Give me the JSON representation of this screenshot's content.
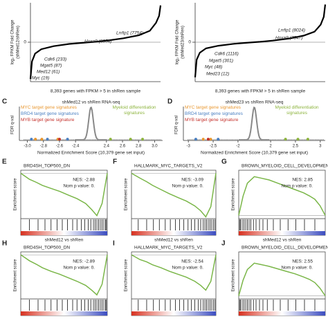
{
  "chart_data": [
    {
      "type": "line",
      "ylabel": [
        "log₂ FPKM Fold Change",
        "(shMed12/shRen)"
      ],
      "xlabel": "8,393 genes with FPKM > 5 in shRen sample",
      "x": [
        1,
        100,
        300,
        700,
        1500,
        2500,
        3500,
        4200,
        5000,
        6000,
        7000,
        7700,
        8100,
        8300,
        8393
      ],
      "values": [
        -4.2,
        -2.2,
        -1.3,
        -0.8,
        -0.45,
        -0.2,
        -0.05,
        0.05,
        0.2,
        0.45,
        0.8,
        1.3,
        2.2,
        3,
        4.2
      ],
      "color": "#000000",
      "xlim": [
        1,
        8393
      ],
      "ylim": [
        -4.5,
        4.5
      ],
      "yticks": [
        0
      ],
      "annotations": [
        "Lrrfip1 (7754)",
        "Hoxa9 (6554)",
        "Cdk6 (233)",
        "Mgat5 (87)",
        "Med12 (61)",
        "Myc (19)"
      ]
    },
    {
      "type": "line",
      "ylabel": [
        "log₂ FPKM Fold Change",
        "(shMed23/shRen)"
      ],
      "xlabel": "8,393 genes with FPKM > 5 in shRen sample",
      "x": [
        1,
        100,
        300,
        700,
        1500,
        2500,
        3500,
        4200,
        5000,
        6000,
        7000,
        7700,
        8100,
        8300,
        8393
      ],
      "values": [
        -4,
        -2,
        -1.2,
        -0.7,
        -0.4,
        -0.18,
        -0.04,
        0.05,
        0.18,
        0.4,
        0.75,
        1.2,
        2,
        2.9,
        4.3
      ],
      "color": "#000000",
      "xlim": [
        1,
        8393
      ],
      "ylim": [
        -4.5,
        4.5
      ],
      "yticks": [
        0
      ],
      "annotations": [
        "Lrrfip1 (8024)",
        "Hoxa9 (7547)",
        "Cdk6 (1116)",
        "Mgat5 (301)",
        "Myc (48)",
        "Med23 (12)"
      ]
    },
    {
      "type": "scatter",
      "panel": "C",
      "title": "shMed12 vs shRen RNA-seq",
      "ylabel": "FDR q-val",
      "xlabel": "Normalized Enrichment Score (10,379 gene set input)",
      "xlim": [
        -3.1,
        3.1
      ],
      "xbreak": [
        -2.35,
        2.35
      ],
      "ylim": [
        0,
        1
      ],
      "xticks": [
        {
          "value": -3,
          "label": "-3.0"
        },
        -2.8,
        -2.6,
        -2.4,
        2.4,
        2.6,
        2.8,
        {
          "value": 3,
          "label": "3.0"
        }
      ],
      "series": [
        {
          "name": "MYC target gene signatures",
          "color": "#e8962e",
          "x": [
            -2.9,
            -2.82,
            -2.62
          ],
          "values": [
            0.02,
            0.02,
            0.02
          ]
        },
        {
          "name": "BRD4 target gene signatures",
          "color": "#4a7fc1",
          "x": [
            -2.95,
            -2.75,
            -2.5
          ],
          "values": [
            0.02,
            0.02,
            0.02
          ]
        },
        {
          "name": "MYB target gene signature",
          "color": "#c4302b",
          "x": [
            -2.6
          ],
          "values": [
            0.02
          ]
        },
        {
          "name": "Myeloid differentiation signatures",
          "color": "#8db43e",
          "x": [
            2.45,
            2.7,
            2.85
          ],
          "values": [
            0.02,
            0.02,
            0.02
          ]
        }
      ]
    },
    {
      "type": "scatter",
      "panel": "D",
      "title": "shMed23 vs shRen RNA-seq",
      "ylabel": "FDR q-val",
      "xlabel": "Normalized Enrichment Score (10,379 gene set input)",
      "xlim": [
        -3.1,
        3.1
      ],
      "xbreak": [
        -1.9,
        1.9
      ],
      "ylim": [
        0,
        1
      ],
      "xticks": [
        -3,
        -2.5,
        -2,
        2,
        2.5,
        3
      ],
      "series": [
        {
          "name": "MYC target gene signatures",
          "color": "#e8962e",
          "x": [
            -2.7,
            -2.55
          ],
          "values": [
            0.02,
            0.02
          ]
        },
        {
          "name": "BRD4 target gene signatures",
          "color": "#4a7fc1",
          "x": [
            -2.85,
            -2.4
          ],
          "values": [
            0.02,
            0.02
          ]
        },
        {
          "name": "MYB target gene signature",
          "color": "#c4302b",
          "x": [
            -2.6
          ],
          "values": [
            0.02
          ]
        },
        {
          "name": "Myeloid differentiation signatures",
          "color": "#8db43e",
          "x": [
            2.3,
            2.55,
            2.75
          ],
          "values": [
            0.02,
            0.02,
            0.02
          ]
        }
      ]
    },
    {
      "type": "enrichment",
      "panel": "E",
      "title": "BRD4SH_TOP500_DN",
      "ylabel": "Enrichment score",
      "annotations": [
        "NES: -2.88",
        "Nom p value: 0."
      ],
      "label": "shMed12 vs shRen",
      "x": [
        0,
        5,
        10,
        18,
        25,
        35,
        45,
        55,
        65,
        75,
        82,
        88,
        94,
        100
      ],
      "values": [
        0,
        -0.05,
        -0.1,
        -0.15,
        -0.2,
        -0.25,
        -0.3,
        -0.36,
        -0.42,
        -0.5,
        -0.6,
        -0.7,
        -0.5,
        0
      ],
      "xlim": [
        0,
        100
      ],
      "ylim": [
        -0.75,
        0.05
      ],
      "color": "#7ab648",
      "hits": [
        10,
        20,
        28,
        35,
        42,
        48,
        54,
        60,
        65,
        70,
        74,
        78,
        81,
        84,
        86,
        88,
        90,
        92,
        94,
        96,
        98,
        99
      ]
    },
    {
      "type": "enrichment",
      "panel": "F",
      "title": "HALLMARK_MYC_TARGETS_V2",
      "ylabel": "Enrichment score",
      "annotations": [
        "NES: -3.09",
        "Nom p value: 0."
      ],
      "label": "shMed12 vs shRen",
      "x": [
        0,
        5,
        10,
        18,
        25,
        35,
        45,
        55,
        65,
        75,
        82,
        88,
        94,
        100
      ],
      "values": [
        0,
        -0.04,
        -0.08,
        -0.14,
        -0.2,
        -0.27,
        -0.34,
        -0.4,
        -0.46,
        -0.54,
        -0.62,
        -0.72,
        -0.55,
        0
      ],
      "xlim": [
        0,
        100
      ],
      "ylim": [
        -0.75,
        0.05
      ],
      "color": "#7ab648",
      "hits": [
        8,
        18,
        26,
        33,
        40,
        46,
        52,
        57,
        62,
        67,
        71,
        75,
        79,
        82,
        85,
        87,
        89,
        91,
        93,
        95,
        97,
        99
      ]
    },
    {
      "type": "enrichment",
      "panel": "G",
      "title": "BROWN_MYELOID_CELL_DEVELOPMENT_UP",
      "ylabel": "Enrichment score",
      "annotations": [
        "NES: 2.85",
        "Nom p value: 0."
      ],
      "label": "shMed12 vs shRen",
      "x": [
        0,
        5,
        10,
        18,
        25,
        35,
        45,
        55,
        65,
        75,
        82,
        88,
        94,
        100
      ],
      "values": [
        0,
        0.3,
        0.5,
        0.6,
        0.58,
        0.55,
        0.5,
        0.45,
        0.4,
        0.35,
        0.3,
        0.25,
        0.15,
        0
      ],
      "xlim": [
        0,
        100
      ],
      "ylim": [
        -0.05,
        0.7
      ],
      "color": "#7ab648",
      "hits": [
        1,
        2,
        4,
        6,
        8,
        10,
        12,
        14,
        17,
        20,
        24,
        28,
        33,
        40,
        48,
        57,
        66,
        76,
        88
      ]
    },
    {
      "type": "enrichment",
      "panel": "H",
      "title": "BRD4SH_TOP500_DN",
      "ylabel": "Enrichment score",
      "annotations": [
        "NES: -2.89",
        "Nom p value: 0."
      ],
      "x": [
        0,
        5,
        10,
        18,
        25,
        35,
        45,
        55,
        65,
        75,
        82,
        88,
        94,
        100
      ],
      "values": [
        0,
        -0.05,
        -0.1,
        -0.16,
        -0.22,
        -0.28,
        -0.33,
        -0.39,
        -0.45,
        -0.52,
        -0.6,
        -0.68,
        -0.5,
        0
      ],
      "xlim": [
        0,
        100
      ],
      "ylim": [
        -0.75,
        0.05
      ],
      "color": "#7ab648",
      "hits": [
        10,
        20,
        28,
        35,
        42,
        48,
        54,
        60,
        65,
        70,
        74,
        78,
        81,
        84,
        86,
        88,
        90,
        92,
        94,
        96,
        98,
        99
      ]
    },
    {
      "type": "enrichment",
      "panel": "I",
      "title": "HALLMARK_MYC_TARGETS_V2",
      "ylabel": "Enrichment score",
      "annotations": [
        "NES: -2.54",
        "Nom p value: 0."
      ],
      "x": [
        0,
        5,
        10,
        18,
        25,
        35,
        45,
        55,
        65,
        75,
        82,
        88,
        94,
        100
      ],
      "values": [
        0,
        -0.04,
        -0.08,
        -0.12,
        -0.17,
        -0.22,
        -0.28,
        -0.33,
        -0.38,
        -0.45,
        -0.52,
        -0.6,
        -0.45,
        0
      ],
      "xlim": [
        0,
        100
      ],
      "ylim": [
        -0.75,
        0.05
      ],
      "color": "#7ab648",
      "hits": [
        8,
        18,
        26,
        33,
        40,
        46,
        52,
        57,
        62,
        67,
        71,
        75,
        79,
        82,
        85,
        87,
        89,
        91,
        93,
        95,
        97,
        99
      ]
    },
    {
      "type": "enrichment",
      "panel": "J",
      "title": "BROWN_MYELOID_CELL_DEVELOPMENT_UP",
      "ylabel": "Enrichment score",
      "annotations": [
        "NES: 2.55",
        "Nom p value: 0."
      ],
      "x": [
        0,
        5,
        10,
        18,
        25,
        35,
        45,
        55,
        65,
        75,
        82,
        88,
        94,
        100
      ],
      "values": [
        0,
        0.25,
        0.42,
        0.52,
        0.5,
        0.47,
        0.43,
        0.39,
        0.35,
        0.3,
        0.26,
        0.21,
        0.12,
        0
      ],
      "xlim": [
        0,
        100
      ],
      "ylim": [
        -0.05,
        0.7
      ],
      "color": "#7ab648",
      "hits": [
        1,
        2,
        4,
        6,
        8,
        10,
        12,
        14,
        17,
        20,
        24,
        28,
        33,
        40,
        48,
        57,
        66,
        76,
        88
      ]
    }
  ]
}
